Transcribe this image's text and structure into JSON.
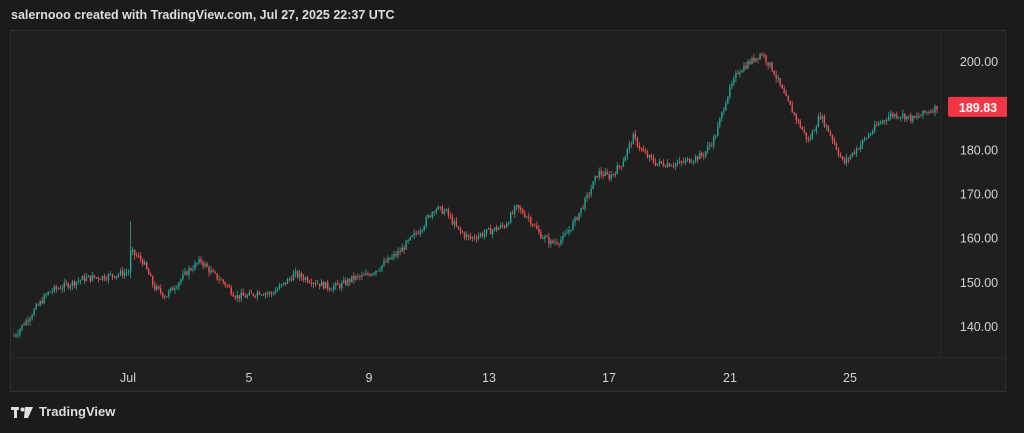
{
  "header": {
    "text": "salernooo created with TradingView.com, Jul 27, 2025 22:37 UTC"
  },
  "footer": {
    "brand": "TradingView",
    "logo_icon": "tradingview-logo-icon"
  },
  "colors": {
    "up": "#26a69a",
    "down": "#ef5350",
    "background": "#1b1b1b",
    "price_badge": "#f23645"
  },
  "chart_data": {
    "type": "candlestick",
    "x_tick_labels": [
      "Jul",
      "5",
      "9",
      "13",
      "17",
      "21",
      "25"
    ],
    "y_tick_labels": [
      "200.00",
      "190.00",
      "180.00",
      "170.00",
      "160.00",
      "150.00",
      "140.00"
    ],
    "y_ticks": [
      200,
      190,
      180,
      170,
      160,
      150,
      140
    ],
    "ylim": [
      133,
      207
    ],
    "last_price": 189.83,
    "last_price_label": "189.83",
    "grid": false,
    "approx_close_path": [
      [
        0,
        138
      ],
      [
        3,
        148
      ],
      [
        6,
        151
      ],
      [
        8,
        151.5
      ],
      [
        9.8,
        152.5
      ],
      [
        10.0,
        157
      ],
      [
        11,
        155
      ],
      [
        12,
        149
      ],
      [
        13,
        147
      ],
      [
        14,
        150
      ],
      [
        15,
        153
      ],
      [
        16,
        155
      ],
      [
        17,
        152
      ],
      [
        18,
        150
      ],
      [
        19,
        147
      ],
      [
        20,
        147
      ],
      [
        21,
        148
      ],
      [
        22,
        147.5
      ],
      [
        23,
        149.5
      ],
      [
        24,
        152
      ],
      [
        25,
        151
      ],
      [
        26,
        150
      ],
      [
        27,
        149
      ],
      [
        28,
        149.5
      ],
      [
        29,
        151
      ],
      [
        30,
        151.5
      ],
      [
        31,
        153
      ],
      [
        32,
        155
      ],
      [
        33,
        157
      ],
      [
        34,
        160
      ],
      [
        35,
        163
      ],
      [
        36,
        167
      ],
      [
        37,
        166
      ],
      [
        38,
        162
      ],
      [
        39,
        160
      ],
      [
        40,
        161
      ],
      [
        41,
        162
      ],
      [
        42,
        163
      ],
      [
        43,
        167
      ],
      [
        44,
        165
      ],
      [
        45,
        161
      ],
      [
        46,
        159
      ],
      [
        47,
        160
      ],
      [
        48,
        164
      ],
      [
        49,
        169
      ],
      [
        50,
        175
      ],
      [
        51,
        174
      ],
      [
        52,
        177
      ],
      [
        53,
        183
      ],
      [
        54,
        179
      ],
      [
        55,
        177
      ],
      [
        56,
        177
      ],
      [
        57,
        177
      ],
      [
        58,
        178
      ],
      [
        59,
        179
      ],
      [
        60,
        183
      ],
      [
        61,
        192
      ],
      [
        62,
        198
      ],
      [
        63,
        200
      ],
      [
        64,
        202
      ],
      [
        65,
        198
      ],
      [
        66,
        192
      ],
      [
        67,
        187
      ],
      [
        68,
        182
      ],
      [
        69,
        188
      ],
      [
        70,
        183
      ],
      [
        71,
        177
      ],
      [
        72,
        180
      ],
      [
        73,
        183
      ],
      [
        74,
        186
      ],
      [
        75,
        188
      ],
      [
        76,
        188
      ],
      [
        77,
        187
      ],
      [
        78,
        188.5
      ],
      [
        79,
        189.83
      ]
    ]
  }
}
